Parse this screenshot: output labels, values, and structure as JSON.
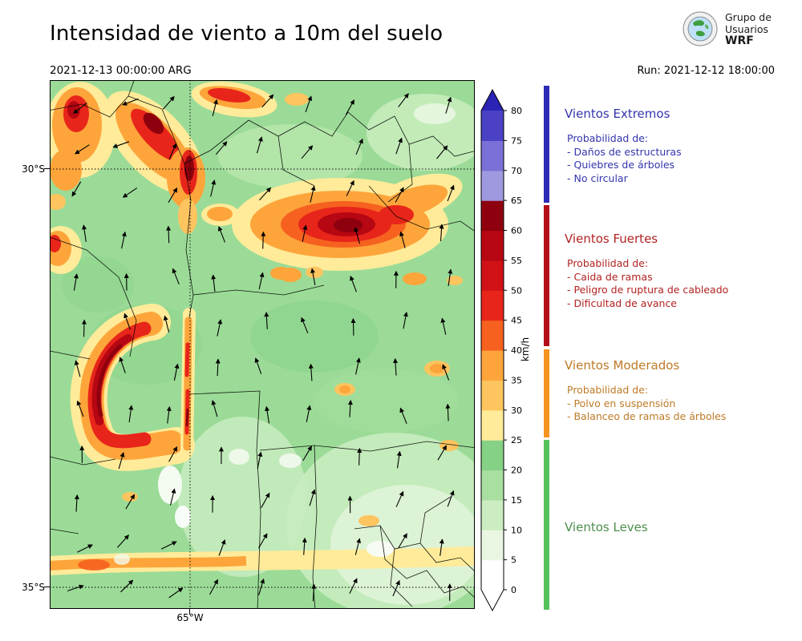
{
  "header": {
    "title": "Intensidad de viento a 10m del suelo",
    "datetime_label": "2021-12-13 00:00:00 ARG",
    "run_label": "Run: 2021-12-12 18:00:00",
    "logo_text": [
      "Grupo de",
      "Usuarios",
      "WRF"
    ]
  },
  "map": {
    "lat_ticks": [
      "30°S",
      "35°S"
    ],
    "lon_ticks": [
      "65°W"
    ]
  },
  "colorbar": {
    "unit": "km/h",
    "tick_min": 0,
    "tick_max": 80,
    "ticks": [
      0,
      5,
      10,
      15,
      20,
      25,
      30,
      35,
      40,
      45,
      50,
      55,
      60,
      65,
      70,
      75,
      80
    ],
    "segment_colors": [
      "#ffffff",
      "#e9f7e2",
      "#ccecc2",
      "#a9dfa1",
      "#85d186",
      "#ffeb99",
      "#fdc45f",
      "#fda53b",
      "#f6611f",
      "#e8251a",
      "#d01116",
      "#b60713",
      "#8e000e",
      "#9f99df",
      "#7a70d7",
      "#4a41c5"
    ],
    "over_color": "#2b23b4",
    "under_color": "#ffffff"
  },
  "legend": {
    "sections": [
      {
        "title": "Vientos Extremos",
        "title_color": "#3434ae",
        "strip_color": "#2d2ab5",
        "items_header": "Probabilidad de:",
        "items": [
          "- Daños de estructuras",
          "- Quiebres de árboles",
          "- No circular"
        ]
      },
      {
        "title": "Vientos Fuertes",
        "title_color": "#b22222",
        "strip_color": "#b3101b",
        "items_header": "Probabilidad de:",
        "items": [
          "- Caida de ramas",
          "- Peligro de ruptura de cableado",
          "- Dificultad de avance"
        ]
      },
      {
        "title": "Vientos Moderados",
        "title_color": "#bd7a26",
        "strip_color": "#f79420",
        "items_header": "Probabilidad de:",
        "items": [
          "- Polvo en suspensión",
          "- Balanceo de ramas de árboles"
        ]
      },
      {
        "title": "Vientos Leves",
        "title_color": "#4c8f4c",
        "strip_color": "#53c25a",
        "items_header": "",
        "items": []
      }
    ]
  }
}
